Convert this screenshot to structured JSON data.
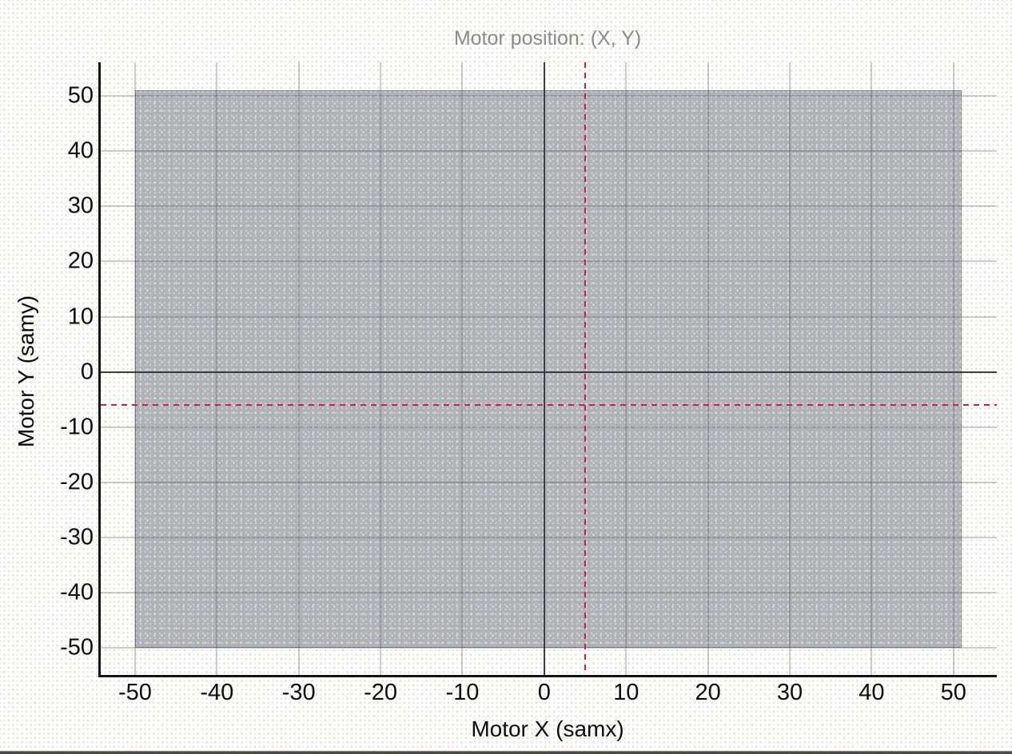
{
  "figure": {
    "title_color": "#8b8b8f",
    "background_color": "#ffffff",
    "dither_dot_colors": [
      "#d9d9f2",
      "#f0f0bd"
    ],
    "bottom_edge_color": "#4c4c44"
  },
  "chart_data": {
    "type": "scatter",
    "title": "Motor position: (X, Y)",
    "xlabel": "Motor X (samx)",
    "ylabel": "Motor Y (samy)",
    "xlim": [
      -54.2,
      55.3
    ],
    "ylim": [
      -54.9,
      56.1
    ],
    "x_ticks": [
      -50,
      -40,
      -30,
      -20,
      -10,
      0,
      10,
      20,
      30,
      40,
      50
    ],
    "y_ticks": [
      50,
      40,
      30,
      20,
      10,
      0,
      -10,
      -20,
      -30,
      -40,
      -50
    ],
    "grid": true,
    "legend": null,
    "motor_limits_region": {
      "x_min": -50,
      "x_max": 51,
      "y_min": -50,
      "y_max": 51,
      "fill_color": "#b1b1ba"
    },
    "zero_axis_lines": {
      "x": 0,
      "y": 0,
      "color": "#3d3d41"
    },
    "crosshair": {
      "x": 5,
      "y": -6,
      "color": "#c8204a",
      "line_style": "dashed"
    },
    "current_motor_position": {
      "x": 5,
      "y": -6
    }
  }
}
